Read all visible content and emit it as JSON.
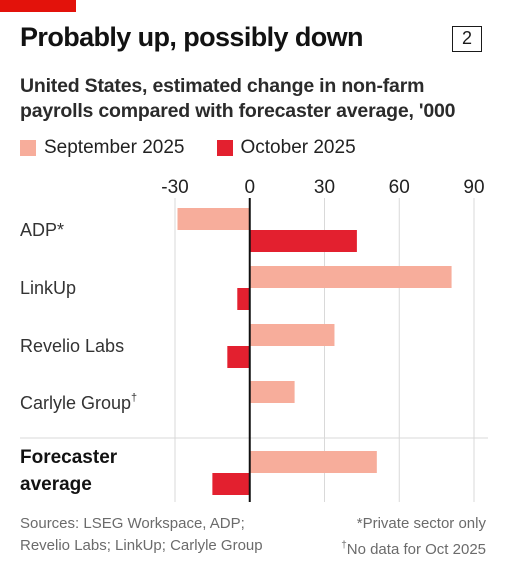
{
  "header": {
    "title": "Probably up, possibly down",
    "badge": "2",
    "subtitle": "United States, estimated change in non-farm payrolls compared with forecaster average, '000"
  },
  "colors": {
    "accent": "#e3120b",
    "september": "#f7ad9b",
    "october": "#e3202f",
    "grid": "#d9d9d9",
    "zero_axis": "#111111"
  },
  "chart_data": {
    "type": "bar",
    "orientation": "horizontal",
    "categories": [
      "ADP*",
      "LinkUp",
      "Revelio Labs",
      "Carlyle Group†",
      "Forecaster average"
    ],
    "category_parts": [
      {
        "text": "ADP*"
      },
      {
        "text": "LinkUp"
      },
      {
        "text": "Revelio Labs"
      },
      {
        "text": "Carlyle Group",
        "sup": "†"
      },
      {
        "text": "Forecaster average",
        "line1": "Forecaster",
        "line2": "average",
        "bold": true
      }
    ],
    "series": [
      {
        "name": "September 2025",
        "values": [
          -29,
          81,
          34,
          18,
          51
        ]
      },
      {
        "name": "October 2025",
        "values": [
          43,
          -5,
          -9,
          null,
          -15
        ]
      }
    ],
    "xlim": [
      -30,
      90
    ],
    "xticks": [
      -30,
      0,
      30,
      60,
      90
    ],
    "xtick_labels": [
      "-30",
      "0",
      "30",
      "60",
      "90"
    ],
    "grid": true,
    "legend_position": "top-left"
  },
  "footer": {
    "sources_line1": "Sources: LSEG Workspace, ADP;",
    "sources_line2": "Revelio Labs; LinkUp; Carlyle Group",
    "note1": "*Private sector only",
    "note2_mark": "†",
    "note2": "No data for Oct 2025"
  }
}
